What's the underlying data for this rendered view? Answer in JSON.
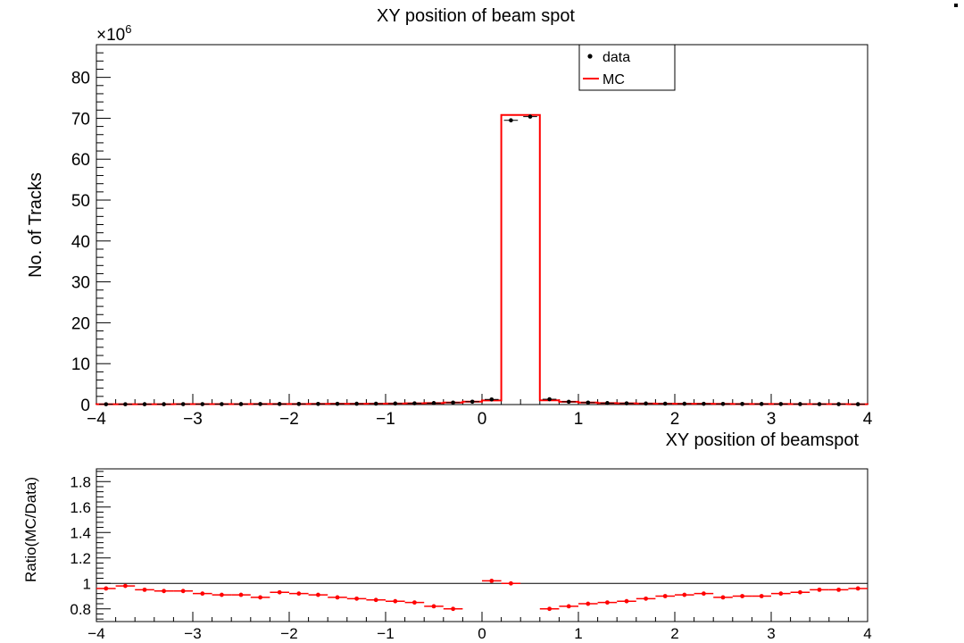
{
  "chart_data": [
    {
      "type": "histogram",
      "title": "XY position of beam spot",
      "xlabel": "XY position of beamspot",
      "ylabel": "No. of Tracks",
      "y_exponent_label": "×10",
      "y_exponent_power": "6",
      "xlim": [
        -4,
        4
      ],
      "ylim": [
        0,
        88
      ],
      "y_unit_multiplier": 1000000,
      "x_ticks": [
        "−4",
        "−3",
        "−2",
        "−1",
        "0",
        "1",
        "2",
        "3",
        "4"
      ],
      "y_ticks": [
        "0",
        "10",
        "20",
        "30",
        "40",
        "50",
        "60",
        "70",
        "80"
      ],
      "legend": {
        "placement": "top-right",
        "entries": [
          "data",
          "MC"
        ]
      },
      "bin_edges_from": -4.0,
      "bin_width": 0.2,
      "series": [
        {
          "name": "data",
          "style": "points",
          "color": "#000000",
          "values": [
            0.08,
            0.08,
            0.09,
            0.09,
            0.1,
            0.1,
            0.11,
            0.12,
            0.13,
            0.14,
            0.15,
            0.16,
            0.18,
            0.2,
            0.22,
            0.25,
            0.3,
            0.36,
            0.48,
            0.7,
            1.25,
            69.5,
            70.4,
            1.3,
            0.68,
            0.48,
            0.36,
            0.3,
            0.25,
            0.22,
            0.2,
            0.18,
            0.16,
            0.15,
            0.14,
            0.13,
            0.12,
            0.11,
            0.1,
            0.09
          ]
        },
        {
          "name": "MC",
          "style": "step",
          "color": "#ff0000",
          "values": [
            0.08,
            0.08,
            0.09,
            0.09,
            0.1,
            0.1,
            0.11,
            0.12,
            0.13,
            0.14,
            0.15,
            0.16,
            0.18,
            0.2,
            0.22,
            0.25,
            0.3,
            0.36,
            0.48,
            0.7,
            1.0,
            70.8,
            70.8,
            1.05,
            0.68,
            0.48,
            0.36,
            0.3,
            0.25,
            0.22,
            0.2,
            0.18,
            0.16,
            0.15,
            0.14,
            0.13,
            0.12,
            0.11,
            0.1,
            0.09
          ]
        }
      ]
    },
    {
      "type": "scatter",
      "title": "",
      "xlabel": "",
      "ylabel": "Ratio(MC/Data)",
      "xlim": [
        -4,
        4
      ],
      "ylim": [
        0.7,
        1.9
      ],
      "x_ticks": [
        "−4",
        "−3",
        "−2",
        "−1",
        "0",
        "1",
        "2",
        "3",
        "4"
      ],
      "y_ticks": [
        "0.8",
        "1",
        "1.2",
        "1.4",
        "1.6",
        "1.8"
      ],
      "reference_line": 1.0,
      "series": [
        {
          "name": "",
          "color": "#ff0000",
          "bin_edges_from": -4.0,
          "bin_width": 0.2,
          "values": [
            0.96,
            0.98,
            0.95,
            0.94,
            0.94,
            0.92,
            0.91,
            0.91,
            0.89,
            0.93,
            0.92,
            0.91,
            0.89,
            0.88,
            0.87,
            0.86,
            0.85,
            0.82,
            0.8,
            null,
            1.02,
            1.0,
            null,
            0.8,
            0.82,
            0.84,
            0.85,
            0.86,
            0.88,
            0.9,
            0.91,
            0.92,
            0.89,
            0.9,
            0.9,
            0.92,
            0.93,
            0.95,
            0.95,
            0.96
          ]
        }
      ]
    }
  ]
}
